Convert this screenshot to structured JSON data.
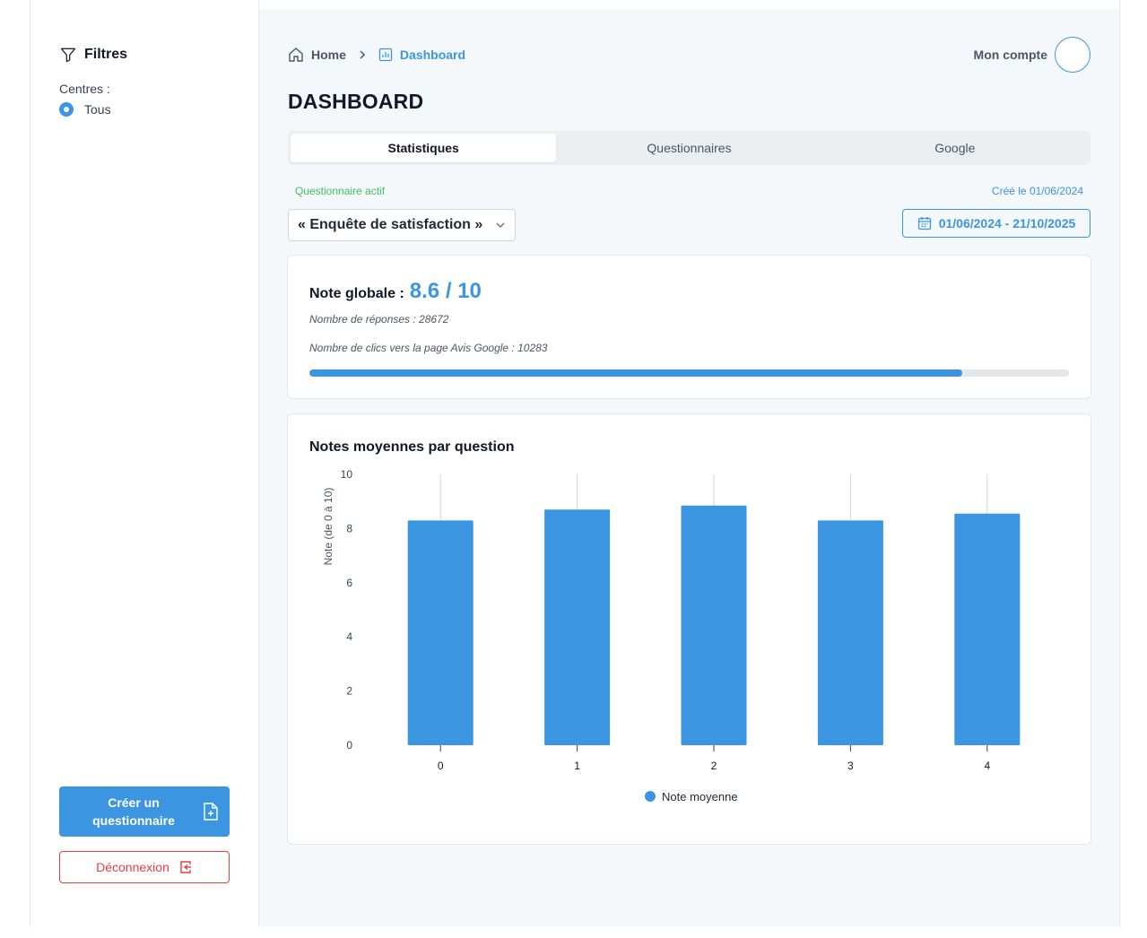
{
  "sidebar": {
    "filters_title": "Filtres",
    "centres_label": "Centres :",
    "centre_option": "Tous",
    "create_button": "Créer un questionnaire",
    "logout_button": "Déconnexion"
  },
  "header": {
    "breadcrumb_home": "Home",
    "breadcrumb_current": "Dashboard",
    "account_label": "Mon compte",
    "page_title": "DASHBOARD"
  },
  "tabs": [
    {
      "label": "Statistiques",
      "active": true
    },
    {
      "label": "Questionnaires",
      "active": false
    },
    {
      "label": "Google",
      "active": false
    }
  ],
  "questionnaire": {
    "status": "Questionnaire actif",
    "created": "Créé le 01/06/2024",
    "selected": "« Enquête de satisfaction »",
    "date_range": "01/06/2024 - 21/10/2025"
  },
  "summary": {
    "score_label": "Note globale :",
    "score_value": "8.6 / 10",
    "responses": "Nombre de réponses : 28672",
    "google_clicks": "Nombre de clics vers la page Avis Google : 10283",
    "progress_fraction": 0.86
  },
  "colors": {
    "accent": "#3b95e0",
    "success": "#3fbf5f",
    "danger": "#e53e3e"
  },
  "chart_data": {
    "type": "bar",
    "title": "Notes moyennes par question",
    "ylabel": "Note (de 0 à 10)",
    "xlabel": "",
    "ylim": [
      0,
      10
    ],
    "yticks": [
      0,
      2,
      4,
      6,
      8,
      10
    ],
    "categories": [
      "0",
      "1",
      "2",
      "3",
      "4"
    ],
    "series": [
      {
        "name": "Note moyenne",
        "values": [
          8.3,
          8.7,
          8.85,
          8.3,
          8.55
        ],
        "color": "#3b95e0"
      }
    ],
    "legend": "bottom"
  }
}
